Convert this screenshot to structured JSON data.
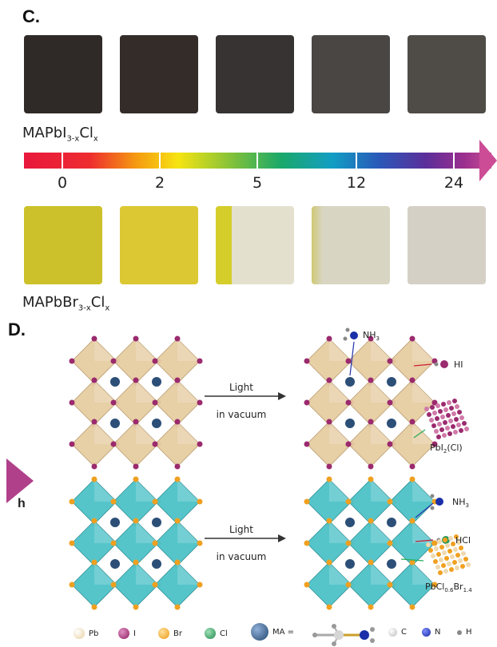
{
  "panel_c": {
    "label": "C.",
    "top_series": {
      "prefix": "MAPbI",
      "sub1": "3-x",
      "mid": "Cl",
      "sub2": "x",
      "films": [
        "#2f2a27",
        "#332c29",
        "#363332",
        "#494643",
        "#4f4b47"
      ]
    },
    "time_ticks": [
      "0",
      "2",
      "5",
      "12",
      "24"
    ],
    "bottom_series": {
      "prefix": "MAPbBr",
      "sub1": "3-x",
      "mid": "Cl",
      "sub2": "x",
      "films": [
        "#ccc12a",
        "#dcc832",
        "#e2e0cc",
        "#d9d8c4",
        "#d5d0c6"
      ]
    }
  },
  "panel_d": {
    "label": "D.",
    "side_label": "h",
    "reaction_top": {
      "line1": "Light",
      "line2": "in vacuum"
    },
    "reaction_bottom": {
      "line1": "Light",
      "line2": "in vacuum"
    },
    "products_top": {
      "gas1": "NH",
      "gas1_sub": "3",
      "gas2": "HI",
      "solid_prefix": "PbI",
      "solid_sub": "2",
      "solid_suffix": "(Cl)"
    },
    "products_bottom": {
      "gas1": "NH",
      "gas1_sub": "3",
      "gas2": "HCl",
      "solid_prefix": "PbCl",
      "solid_sub1": "0.6",
      "solid_mid": "Br",
      "solid_sub2": "1.4"
    },
    "legend": {
      "pb": "Pb",
      "i": "I",
      "br": "Br",
      "cl": "Cl",
      "ma": "MA =",
      "c": "C",
      "n": "N",
      "h": "H"
    },
    "colors": {
      "pb": "#efd9b0",
      "i": "#9b2a6e",
      "br": "#f0a020",
      "cl": "#2f9a5a",
      "ma": "#2c4f78",
      "c": "#d8d8d8",
      "n": "#1a2fa8",
      "h": "#888888",
      "octa_top": "#e6cda2",
      "octa_bottom": "#4cc2c8"
    }
  }
}
